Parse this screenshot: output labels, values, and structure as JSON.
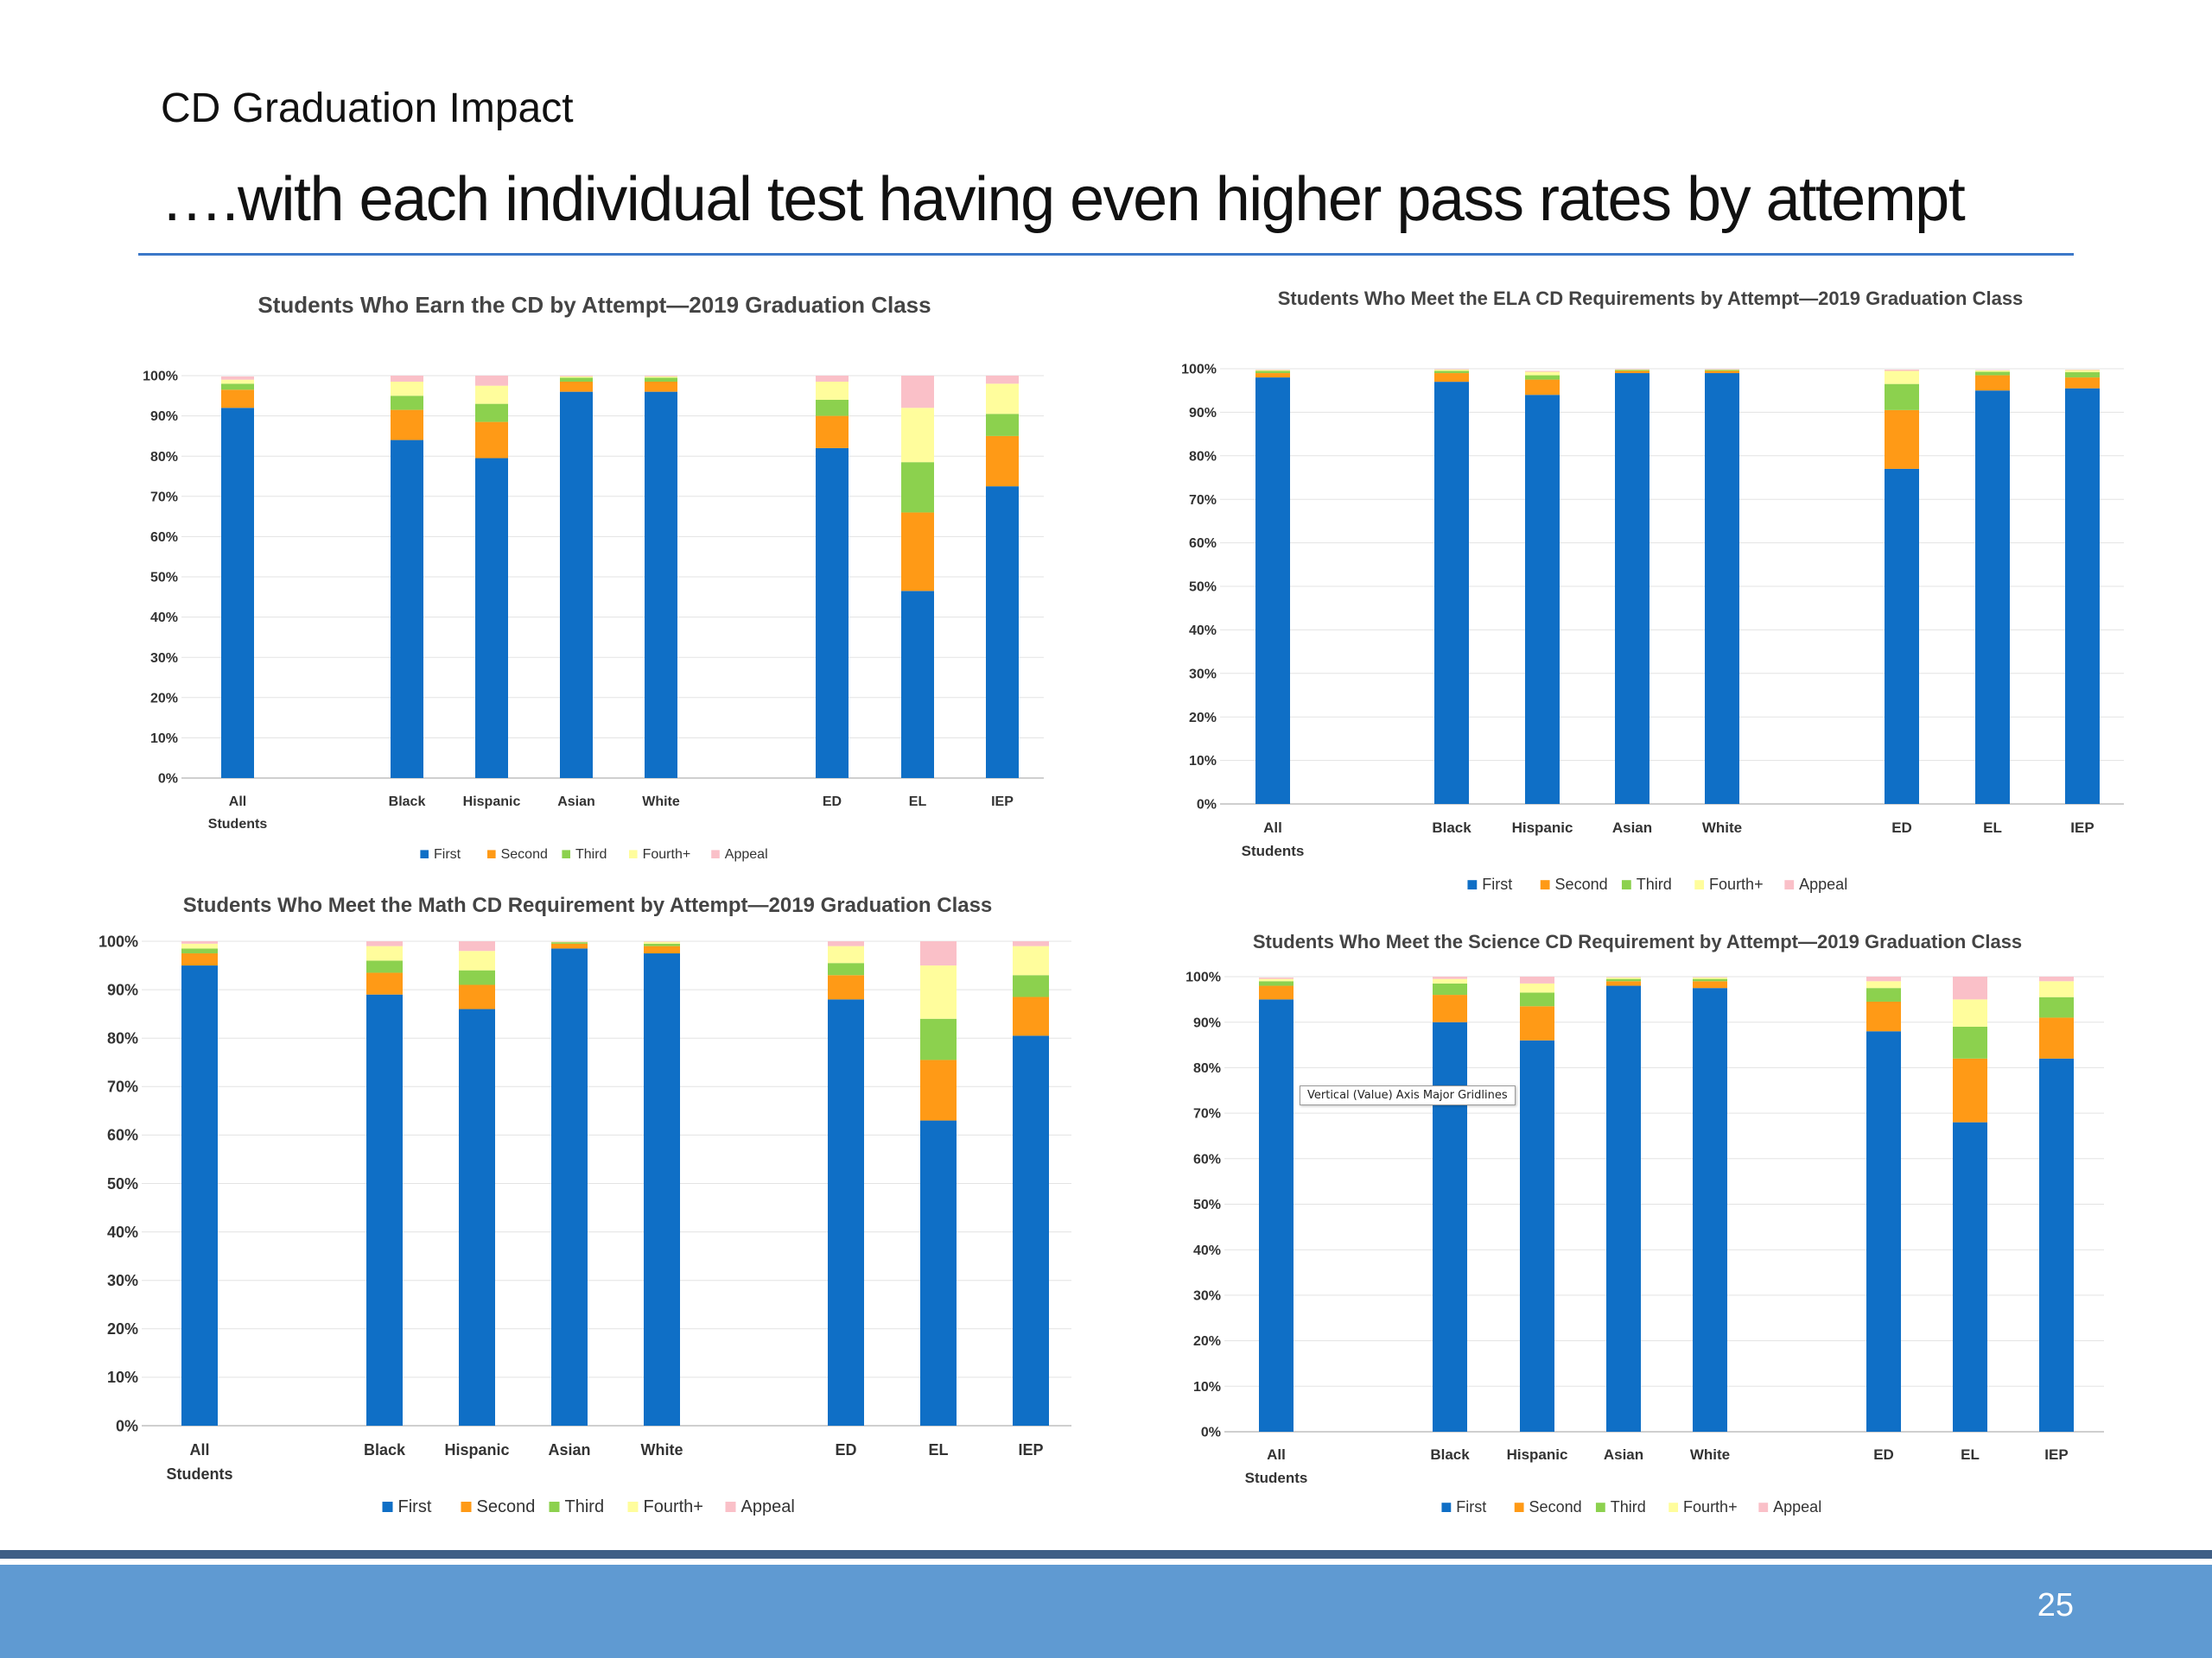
{
  "slide": {
    "subtitle": "CD Graduation Impact",
    "title": "….with each individual test having even higher pass rates by attempt",
    "page_number": "25",
    "tooltip": "Vertical (Value) Axis Major Gridlines"
  },
  "colors": {
    "First": "#0f6fc6",
    "Second": "#ff9a16",
    "Third": "#8cd14e",
    "Fourth+": "#fffd9c",
    "Appeal": "#fac0c8",
    "accent_rule": "#3c78c8",
    "footer": "#5f9ad2"
  },
  "chart_data": [
    {
      "type": "bar",
      "stacked": true,
      "title": "Students Who Earn the CD by Attempt—2019 Graduation Class",
      "categories": [
        "All Students",
        "Black",
        "Hispanic",
        "Asian",
        "White",
        "ED",
        "EL",
        "IEP"
      ],
      "ylim": [
        0,
        100
      ],
      "yticks": [
        "0%",
        "10%",
        "20%",
        "30%",
        "40%",
        "50%",
        "60%",
        "70%",
        "80%",
        "90%",
        "100%"
      ],
      "grid": true,
      "legend": "bottom",
      "series": [
        {
          "name": "First",
          "values": [
            92,
            84,
            79.5,
            96,
            96,
            82,
            46.5,
            72.5
          ]
        },
        {
          "name": "Second",
          "values": [
            4.5,
            7.5,
            9,
            2.5,
            2.5,
            8,
            19.5,
            12.5
          ]
        },
        {
          "name": "Third",
          "values": [
            1.5,
            3.5,
            4.5,
            1,
            1,
            4,
            12.5,
            5.5
          ]
        },
        {
          "name": "Fourth+",
          "values": [
            1,
            3.5,
            4.5,
            0.3,
            0.3,
            4.5,
            13.5,
            7.5
          ]
        },
        {
          "name": "Appeal",
          "values": [
            0.8,
            1.5,
            2.5,
            0.2,
            0.2,
            1.5,
            8,
            2
          ]
        }
      ]
    },
    {
      "type": "bar",
      "stacked": true,
      "title": "Students Who Meet the ELA CD Requirements by Attempt—2019 Graduation Class",
      "categories": [
        "All Students",
        "Black",
        "Hispanic",
        "Asian",
        "White",
        "ED",
        "EL",
        "IEP"
      ],
      "ylim": [
        0,
        100
      ],
      "yticks": [
        "0%",
        "10%",
        "20%",
        "30%",
        "40%",
        "50%",
        "60%",
        "70%",
        "80%",
        "90%",
        "100%"
      ],
      "grid": true,
      "legend": "bottom",
      "series": [
        {
          "name": "First",
          "values": [
            98,
            97,
            94,
            99,
            99,
            77,
            95,
            95.5
          ]
        },
        {
          "name": "Second",
          "values": [
            1,
            2,
            3.5,
            0.5,
            0.5,
            13.5,
            3.5,
            2.5
          ]
        },
        {
          "name": "Third",
          "values": [
            0.5,
            0.5,
            1,
            0.2,
            0.2,
            6,
            0.8,
            1.2
          ]
        },
        {
          "name": "Fourth+",
          "values": [
            0.2,
            0.3,
            0.8,
            0.1,
            0.1,
            3,
            0.3,
            0.5
          ]
        },
        {
          "name": "Appeal",
          "values": [
            0.1,
            0.1,
            0.2,
            0.1,
            0.1,
            0.3,
            0.1,
            0.1
          ]
        }
      ]
    },
    {
      "type": "bar",
      "stacked": true,
      "title": "Students Who Meet the Math CD Requirement by Attempt—2019 Graduation Class",
      "categories": [
        "All Students",
        "Black",
        "Hispanic",
        "Asian",
        "White",
        "ED",
        "EL",
        "IEP"
      ],
      "ylim": [
        0,
        100
      ],
      "yticks": [
        "0%",
        "10%",
        "20%",
        "30%",
        "40%",
        "50%",
        "60%",
        "70%",
        "80%",
        "90%",
        "100%"
      ],
      "grid": true,
      "legend": "bottom",
      "series": [
        {
          "name": "First",
          "values": [
            95,
            89,
            86,
            98.5,
            97.5,
            88,
            63,
            80.5
          ]
        },
        {
          "name": "Second",
          "values": [
            2.5,
            4.5,
            5,
            1,
            1.5,
            5,
            12.5,
            8
          ]
        },
        {
          "name": "Third",
          "values": [
            1,
            2.5,
            3,
            0.3,
            0.5,
            2.5,
            8.5,
            4.5
          ]
        },
        {
          "name": "Fourth+",
          "values": [
            1,
            3,
            4,
            0.1,
            0.4,
            3.5,
            11,
            6
          ]
        },
        {
          "name": "Appeal",
          "values": [
            0.5,
            1,
            2,
            0.1,
            0.1,
            1,
            5,
            1
          ]
        }
      ]
    },
    {
      "type": "bar",
      "stacked": true,
      "title": "Students Who Meet the Science CD Requirement by Attempt—2019 Graduation Class",
      "categories": [
        "All Students",
        "Black",
        "Hispanic",
        "Asian",
        "White",
        "ED",
        "EL",
        "IEP"
      ],
      "ylim": [
        0,
        100
      ],
      "yticks": [
        "0%",
        "10%",
        "20%",
        "30%",
        "40%",
        "50%",
        "60%",
        "70%",
        "80%",
        "90%",
        "100%"
      ],
      "grid": true,
      "legend": "bottom",
      "series": [
        {
          "name": "First",
          "values": [
            95,
            90,
            86,
            98,
            97.5,
            88,
            68,
            82
          ]
        },
        {
          "name": "Second",
          "values": [
            3,
            6,
            7.5,
            1,
            1.5,
            6.5,
            14,
            9
          ]
        },
        {
          "name": "Third",
          "values": [
            1,
            2.5,
            3,
            0.5,
            0.5,
            3,
            7,
            4.5
          ]
        },
        {
          "name": "Fourth+",
          "values": [
            0.5,
            1,
            2,
            0.3,
            0.3,
            1.5,
            6,
            3.5
          ]
        },
        {
          "name": "Appeal",
          "values": [
            0.3,
            0.5,
            1.5,
            0.1,
            0.1,
            1,
            5,
            1
          ]
        }
      ]
    }
  ]
}
